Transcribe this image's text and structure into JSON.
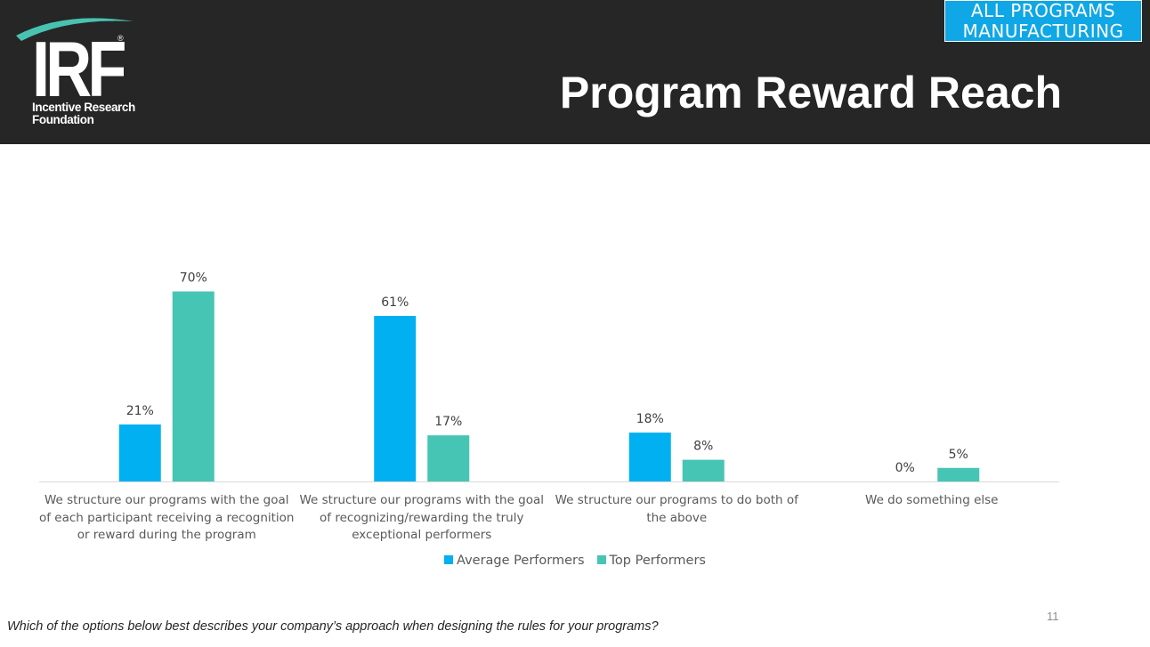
{
  "header": {
    "logo": {
      "letters": "IRF",
      "registered": "®",
      "line1": "Incentive Research",
      "line2": "Foundation"
    },
    "tag_line1": "ALL PROGRAMS",
    "tag_line2": "MANUFACTURING",
    "title": "Program Reward Reach",
    "background_color": "#262626",
    "tag_color": "#0fa7e6"
  },
  "chart_data": {
    "type": "bar",
    "categories": [
      "We structure our programs with the goal of each participant receiving a recognition or reward during the program",
      "We structure our programs with the goal of recognizing/rewarding the truly exceptional performers",
      "We structure our programs to do both of the above",
      "We do something else"
    ],
    "series": [
      {
        "name": "Average Performers",
        "color": "#00b0f0",
        "values": [
          21,
          61,
          18,
          0
        ],
        "labels": [
          "21%",
          "61%",
          "18%",
          "0%"
        ]
      },
      {
        "name": "Top Performers",
        "color": "#47c5b4",
        "values": [
          70,
          17,
          8,
          5
        ],
        "labels": [
          "70%",
          "17%",
          "8%",
          "5%"
        ]
      }
    ],
    "unit": "%",
    "ylim": [
      0,
      70
    ],
    "grid": false,
    "legend_position": "bottom"
  },
  "footer": {
    "question": "Which of the options below best describes your company’s approach when designing the rules for your programs?",
    "page_number": "11"
  }
}
